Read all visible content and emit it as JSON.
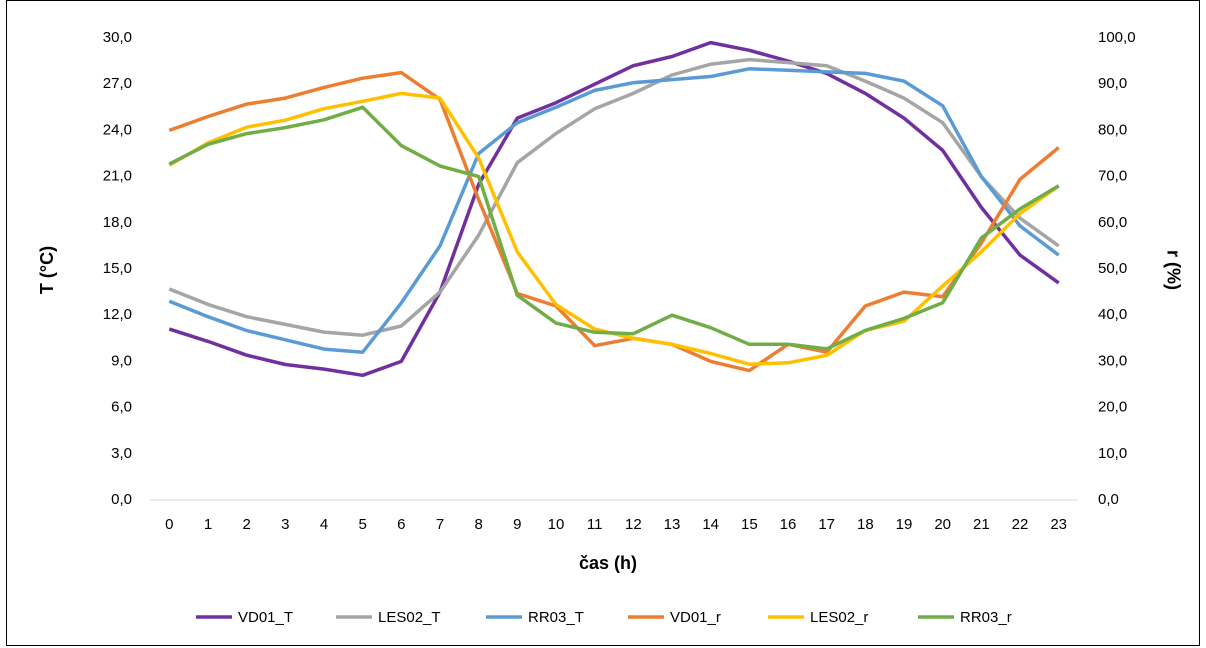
{
  "chart_data": {
    "type": "line",
    "xlabel": "čas (h)",
    "ylabel": "T (°C)",
    "y2label": "r (%)",
    "categories": [
      "0",
      "1",
      "2",
      "3",
      "4",
      "5",
      "6",
      "7",
      "8",
      "9",
      "10",
      "11",
      "12",
      "13",
      "14",
      "15",
      "16",
      "17",
      "18",
      "19",
      "20",
      "21",
      "22",
      "23"
    ],
    "ylim": [
      0,
      30
    ],
    "yticks": [
      {
        "value": 0,
        "label": "0,0"
      },
      {
        "value": 3,
        "label": "3,0"
      },
      {
        "value": 6,
        "label": "6,0"
      },
      {
        "value": 9,
        "label": "9,0"
      },
      {
        "value": 12,
        "label": "12,0"
      },
      {
        "value": 15,
        "label": "15,0"
      },
      {
        "value": 18,
        "label": "18,0"
      },
      {
        "value": 21,
        "label": "21,0"
      },
      {
        "value": 24,
        "label": "24,0"
      },
      {
        "value": 27,
        "label": "27,0"
      },
      {
        "value": 30,
        "label": "30,0"
      }
    ],
    "y2lim": [
      0,
      100
    ],
    "y2ticks": [
      {
        "value": 0,
        "label": "0,0"
      },
      {
        "value": 10,
        "label": "10,0"
      },
      {
        "value": 20,
        "label": "20,0"
      },
      {
        "value": 30,
        "label": "30,0"
      },
      {
        "value": 40,
        "label": "40,0"
      },
      {
        "value": 50,
        "label": "50,0"
      },
      {
        "value": 60,
        "label": "60,0"
      },
      {
        "value": 70,
        "label": "70,0"
      },
      {
        "value": 80,
        "label": "80,0"
      },
      {
        "value": 90,
        "label": "90,0"
      },
      {
        "value": 100,
        "label": "100,0"
      }
    ],
    "legend": "bottom",
    "series": [
      {
        "name": "VD01_T",
        "color": "#7030a0",
        "values": [
          11.1,
          10.3,
          9.4,
          8.8,
          8.5,
          8.1,
          9.0,
          13.5,
          20.5,
          24.8,
          25.8,
          27.0,
          28.2,
          28.8,
          29.7,
          29.2,
          28.5,
          27.7,
          26.4,
          24.8,
          22.7,
          19.0,
          15.9,
          14.1
        ]
      },
      {
        "name": "LES02_T",
        "color": "#a5a5a5",
        "values": [
          13.7,
          12.7,
          11.9,
          11.4,
          10.9,
          10.7,
          11.3,
          13.5,
          17.2,
          21.9,
          23.8,
          25.4,
          26.4,
          27.6,
          28.3,
          28.6,
          28.4,
          28.2,
          27.2,
          26.1,
          24.5,
          21.0,
          18.3,
          16.5
        ]
      },
      {
        "name": "RR03_T",
        "color": "#5b9bd5",
        "values": [
          12.9,
          11.9,
          11.0,
          10.4,
          9.8,
          9.6,
          12.8,
          16.5,
          22.5,
          24.5,
          25.5,
          26.6,
          27.1,
          27.3,
          27.5,
          28.0,
          27.9,
          27.8,
          27.7,
          27.2,
          25.6,
          21.0,
          17.8,
          15.9
        ]
      },
      {
        "name": "VD01_r",
        "color": "#ed7d31",
        "axis": "y2",
        "values": [
          80.0,
          83.0,
          85.7,
          87.0,
          89.3,
          91.3,
          92.5,
          86.7,
          65.0,
          44.7,
          42.0,
          33.4,
          35.0,
          33.7,
          30.0,
          28.0,
          33.7,
          32.0,
          42.0,
          45.0,
          44.0,
          55.6,
          69.4,
          76.3
        ]
      },
      {
        "name": "LES02_r",
        "color": "#ffc000",
        "axis": "y2",
        "values": [
          72.5,
          77.3,
          80.7,
          82.2,
          84.7,
          86.3,
          88.0,
          87.0,
          74.0,
          53.7,
          42.3,
          37.0,
          35.0,
          33.7,
          31.7,
          29.4,
          29.7,
          31.3,
          36.7,
          38.7,
          46.3,
          53.7,
          62.0,
          68.0
        ]
      },
      {
        "name": "RR03_r",
        "color": "#70ad47",
        "axis": "y2",
        "values": [
          72.7,
          77.0,
          79.3,
          80.6,
          82.3,
          85.0,
          76.7,
          72.3,
          70.0,
          44.3,
          38.3,
          36.3,
          36.0,
          40.0,
          37.3,
          33.7,
          33.7,
          32.7,
          36.7,
          39.3,
          42.7,
          56.7,
          63.0,
          68.0
        ]
      }
    ]
  }
}
